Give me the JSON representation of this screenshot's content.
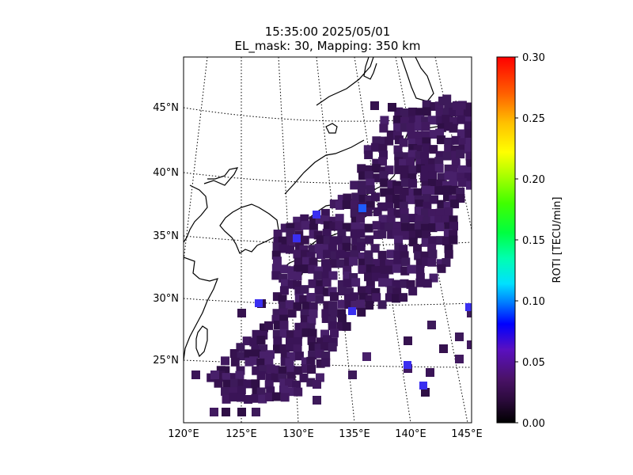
{
  "title": {
    "line1": "15:35:00 2025/05/01",
    "line2": "EL_mask: 30, Mapping: 350 km"
  },
  "map": {
    "lon_range": [
      120,
      145
    ],
    "lat_range": [
      20,
      49
    ],
    "lon_ticks": [
      "120°E",
      "125°E",
      "130°E",
      "135°E",
      "140°E",
      "145°E"
    ],
    "lat_ticks": [
      "25°N",
      "30°N",
      "35°N",
      "40°N",
      "45°N"
    ],
    "grid": "dotted",
    "projection": "lambert-conformal",
    "coastline_color": "#000000"
  },
  "colorbar": {
    "label": "ROTI [TECU/min]",
    "min": 0.0,
    "max": 0.3,
    "ticks": [
      "0.00",
      "0.05",
      "0.10",
      "0.15",
      "0.20",
      "0.25",
      "0.30"
    ],
    "colormap": "gist_ncar-like",
    "colors": [
      "#000000",
      "#3a0f50",
      "#6a0aa0",
      "#0000ff",
      "#00c0ff",
      "#00ffe0",
      "#00ff00",
      "#b0ff00",
      "#ffff00",
      "#ff9a00",
      "#ff0000"
    ]
  },
  "data_color": "#3e1a5e",
  "data_outlier_colors": [
    "#3a2ff0",
    "#1e5bff"
  ]
}
